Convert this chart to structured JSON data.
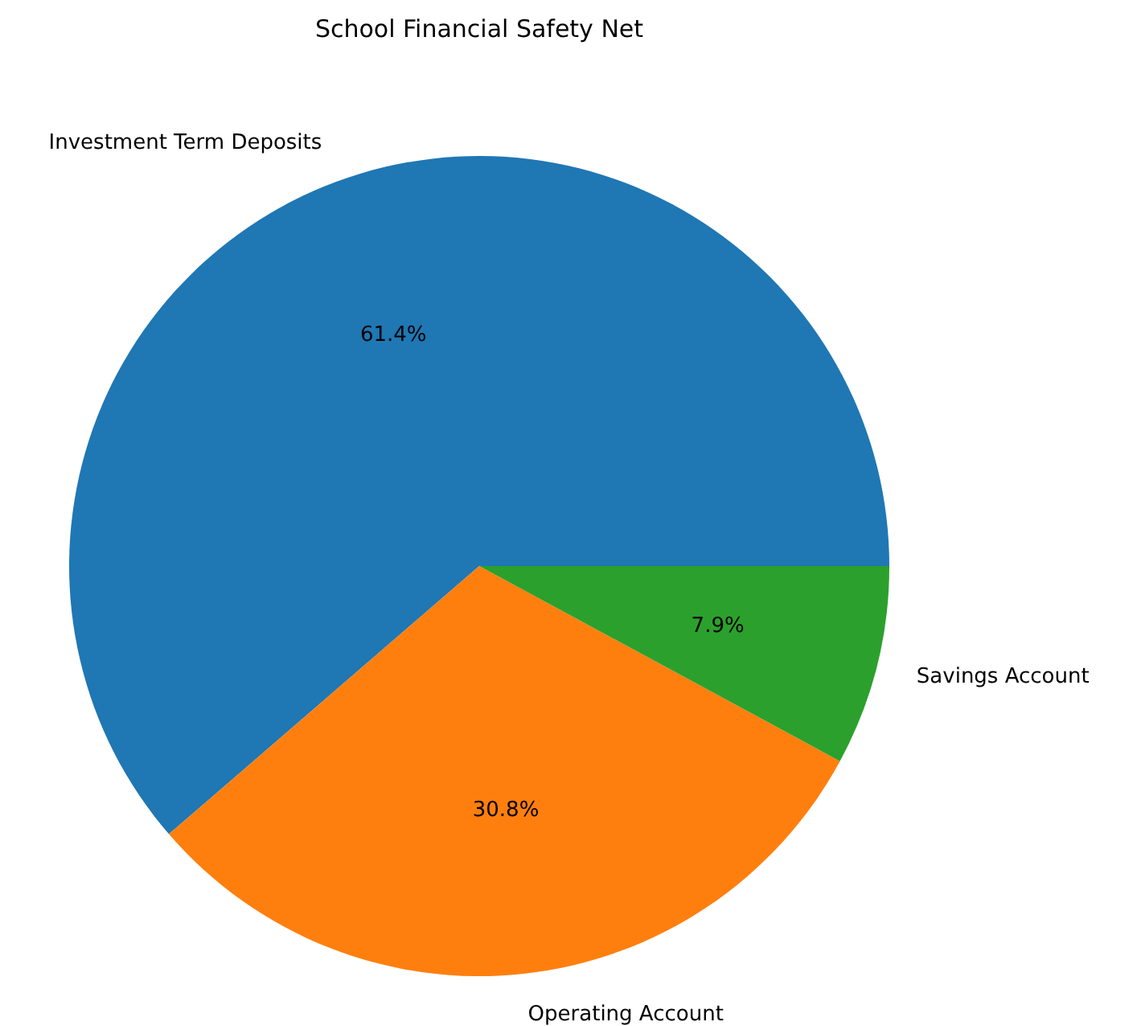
{
  "chart_data": {
    "type": "pie",
    "title": "School Financial Safety Net",
    "categories": [
      "Investment Term Deposits",
      "Operating Account",
      "Savings Account"
    ],
    "values": [
      61.4,
      30.8,
      7.9
    ],
    "colors": [
      "#1f77b4",
      "#ff7f0e",
      "#2ca02c"
    ],
    "value_labels": [
      "61.4%",
      "30.8%",
      "7.9%"
    ]
  }
}
